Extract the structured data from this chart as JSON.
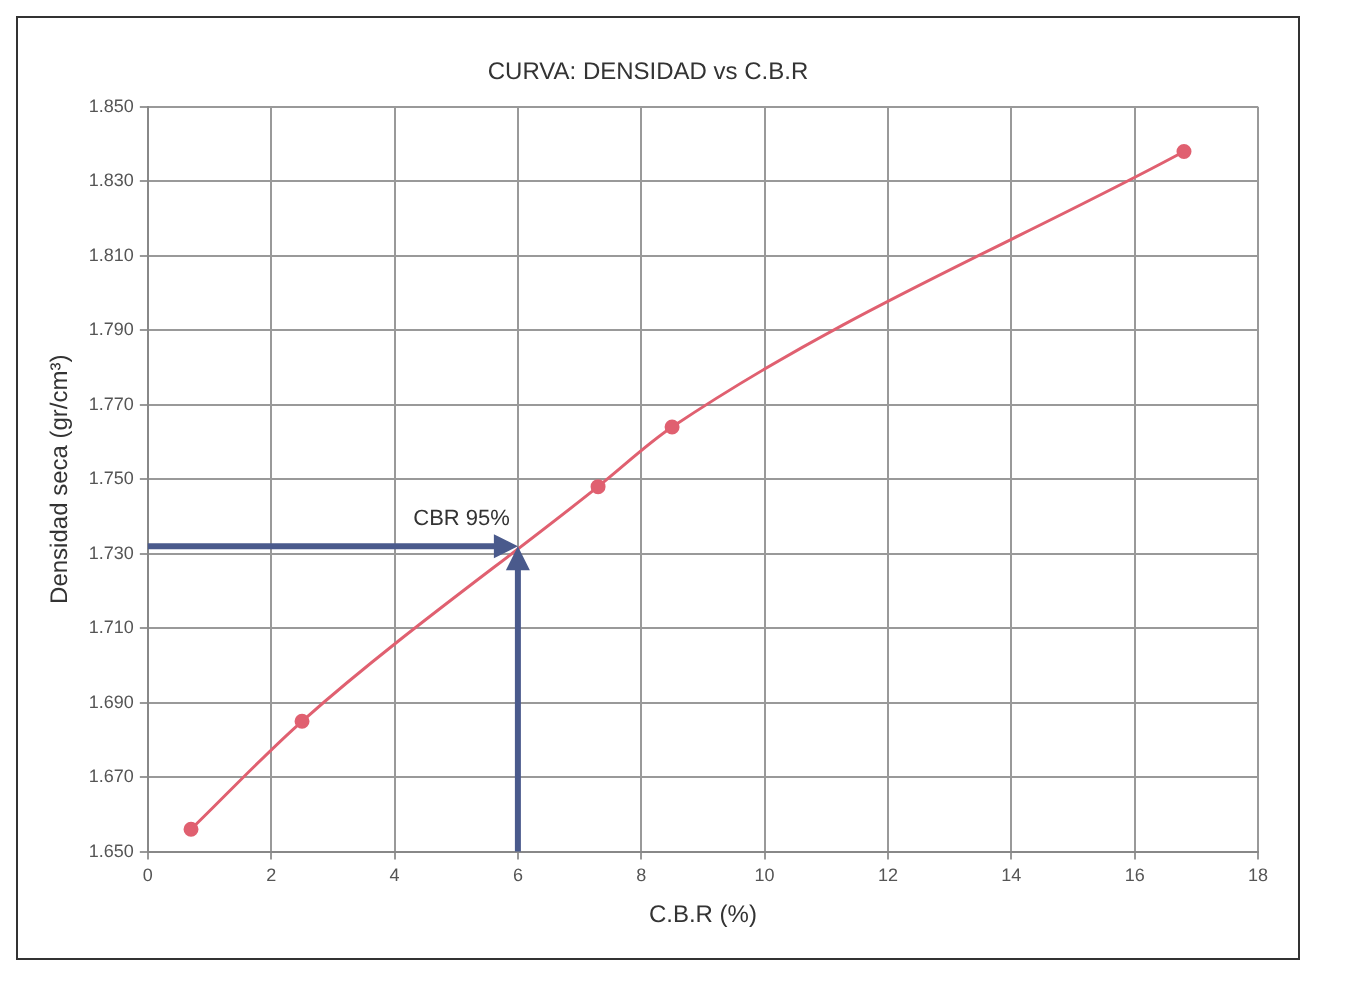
{
  "chart_data": {
    "type": "line",
    "title": "CURVA: DENSIDAD vs C.B.R",
    "xlabel": "C.B.R (%)",
    "ylabel": "Densidad seca (gr/cm³)",
    "series": [
      {
        "color": "#e06070",
        "x": [
          0.7,
          2.5,
          7.3,
          8.5,
          16.8
        ],
        "values": [
          1.656,
          1.685,
          1.748,
          1.764,
          1.838
        ]
      }
    ],
    "annotations": [
      {
        "text": "CBR 95%",
        "x": 6,
        "y": 1.732
      }
    ],
    "xlim": [
      0,
      18
    ],
    "xticks": [
      0,
      2,
      4,
      6,
      8,
      10,
      12,
      14,
      16,
      18
    ],
    "ylim": [
      1.65,
      1.85
    ],
    "yticks": [
      {
        "value": 1.65,
        "label": "1.650"
      },
      {
        "value": 1.67,
        "label": "1.670"
      },
      {
        "value": 1.69,
        "label": "1.690"
      },
      {
        "value": 1.71,
        "label": "1.710"
      },
      {
        "value": 1.73,
        "label": "1.730"
      },
      {
        "value": 1.75,
        "label": "1.750"
      },
      {
        "value": 1.77,
        "label": "1.770"
      },
      {
        "value": 1.79,
        "label": "1.790"
      },
      {
        "value": 1.81,
        "label": "1.810"
      },
      {
        "value": 1.83,
        "label": "1.830"
      },
      {
        "value": 1.85,
        "label": "1.850"
      }
    ],
    "grid": true,
    "legend": false,
    "marker": "circle",
    "line_style": "solid"
  }
}
